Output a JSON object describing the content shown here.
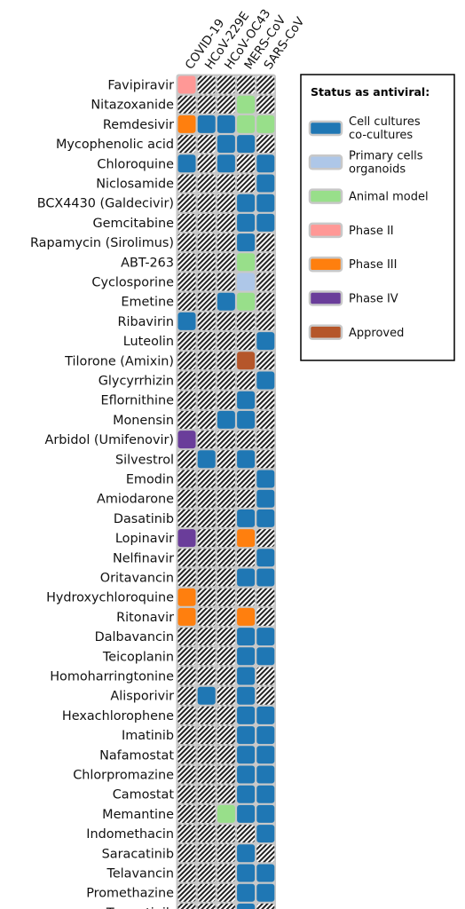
{
  "chart_data": {
    "type": "heatmap",
    "columns": [
      "COVID-19",
      "HCoV-229E",
      "HCoV-OC43",
      "MERS-CoV",
      "SARS-CoV"
    ],
    "rows": [
      "Favipiravir",
      "Nitazoxanide",
      "Remdesivir",
      "Mycophenolic acid",
      "Chloroquine",
      "Niclosamide",
      "BCX4430 (Galdecivir)",
      "Gemcitabine",
      "Rapamycin (Sirolimus)",
      "ABT-263",
      "Cyclosporine",
      "Emetine",
      "Ribavirin",
      "Luteolin",
      "Tilorone (Amixin)",
      "Glycyrrhizin",
      "Eflornithine",
      "Monensin",
      "Arbidol (Umifenovir)",
      "Silvestrol",
      "Emodin",
      "Amiodarone",
      "Dasatinib",
      "Lopinavir",
      "Nelfinavir",
      "Oritavancin",
      "Hydroxychloroquine",
      "Ritonavir",
      "Dalbavancin",
      "Teicoplanin",
      "Homoharringtonine",
      "Alisporivir",
      "Hexachlorophene",
      "Imatinib",
      "Nafamostat",
      "Chlorpromazine",
      "Camostat",
      "Memantine",
      "Indomethacin",
      "Saracatinib",
      "Telavancin",
      "Promethazine",
      "Trametinib"
    ],
    "status_codes": {
      "0": "no data",
      "1": "Cell cultures co-cultures",
      "2": "Primary cells organoids",
      "3": "Animal model",
      "4": "Phase II",
      "5": "Phase III",
      "6": "Phase IV",
      "7": "Approved"
    },
    "values": [
      [
        4,
        0,
        0,
        0,
        0
      ],
      [
        0,
        0,
        0,
        3,
        0
      ],
      [
        5,
        1,
        1,
        3,
        3
      ],
      [
        0,
        0,
        1,
        1,
        0
      ],
      [
        1,
        0,
        1,
        0,
        1
      ],
      [
        0,
        0,
        0,
        0,
        1
      ],
      [
        0,
        0,
        0,
        1,
        1
      ],
      [
        0,
        0,
        0,
        1,
        1
      ],
      [
        0,
        0,
        0,
        1,
        0
      ],
      [
        0,
        0,
        0,
        3,
        0
      ],
      [
        0,
        0,
        0,
        2,
        0
      ],
      [
        0,
        0,
        1,
        3,
        0
      ],
      [
        1,
        0,
        0,
        0,
        0
      ],
      [
        0,
        0,
        0,
        0,
        1
      ],
      [
        0,
        0,
        0,
        7,
        0
      ],
      [
        0,
        0,
        0,
        0,
        1
      ],
      [
        0,
        0,
        0,
        1,
        0
      ],
      [
        0,
        0,
        1,
        1,
        0
      ],
      [
        6,
        0,
        0,
        0,
        0
      ],
      [
        0,
        1,
        0,
        1,
        0
      ],
      [
        0,
        0,
        0,
        0,
        1
      ],
      [
        0,
        0,
        0,
        0,
        1
      ],
      [
        0,
        0,
        0,
        1,
        1
      ],
      [
        6,
        0,
        0,
        5,
        0
      ],
      [
        0,
        0,
        0,
        0,
        1
      ],
      [
        0,
        0,
        0,
        1,
        1
      ],
      [
        5,
        0,
        0,
        0,
        0
      ],
      [
        5,
        0,
        0,
        5,
        0
      ],
      [
        0,
        0,
        0,
        1,
        1
      ],
      [
        0,
        0,
        0,
        1,
        1
      ],
      [
        0,
        0,
        0,
        1,
        0
      ],
      [
        0,
        1,
        0,
        1,
        0
      ],
      [
        0,
        0,
        0,
        1,
        1
      ],
      [
        0,
        0,
        0,
        1,
        1
      ],
      [
        0,
        0,
        0,
        1,
        1
      ],
      [
        0,
        0,
        0,
        1,
        1
      ],
      [
        0,
        0,
        0,
        1,
        1
      ],
      [
        0,
        0,
        3,
        1,
        1
      ],
      [
        0,
        0,
        0,
        0,
        1
      ],
      [
        0,
        0,
        0,
        1,
        0
      ],
      [
        0,
        0,
        0,
        1,
        1
      ],
      [
        0,
        0,
        0,
        1,
        1
      ],
      [
        0,
        0,
        0,
        1,
        0
      ]
    ],
    "legend": {
      "title": "Status as antiviral:",
      "placement": "top-right",
      "items": [
        {
          "code": 1,
          "lines": [
            "Cell cultures",
            "co-cultures"
          ]
        },
        {
          "code": 2,
          "lines": [
            "Primary cells",
            "organoids"
          ]
        },
        {
          "code": 3,
          "lines": [
            "Animal model"
          ]
        },
        {
          "code": 4,
          "lines": [
            "Phase II"
          ]
        },
        {
          "code": 5,
          "lines": [
            "Phase III"
          ]
        },
        {
          "code": 6,
          "lines": [
            "Phase IV"
          ]
        },
        {
          "code": 7,
          "lines": [
            "Approved"
          ]
        }
      ]
    },
    "colors": {
      "1": "#1f77b4",
      "2": "#aec7e8",
      "3": "#98df8a",
      "4": "#ff9896",
      "5": "#ff7f0e",
      "6": "#6a3d9a",
      "7": "#b5562a",
      "cell_border": "#c8c8c8",
      "hatch": "#222222"
    }
  }
}
